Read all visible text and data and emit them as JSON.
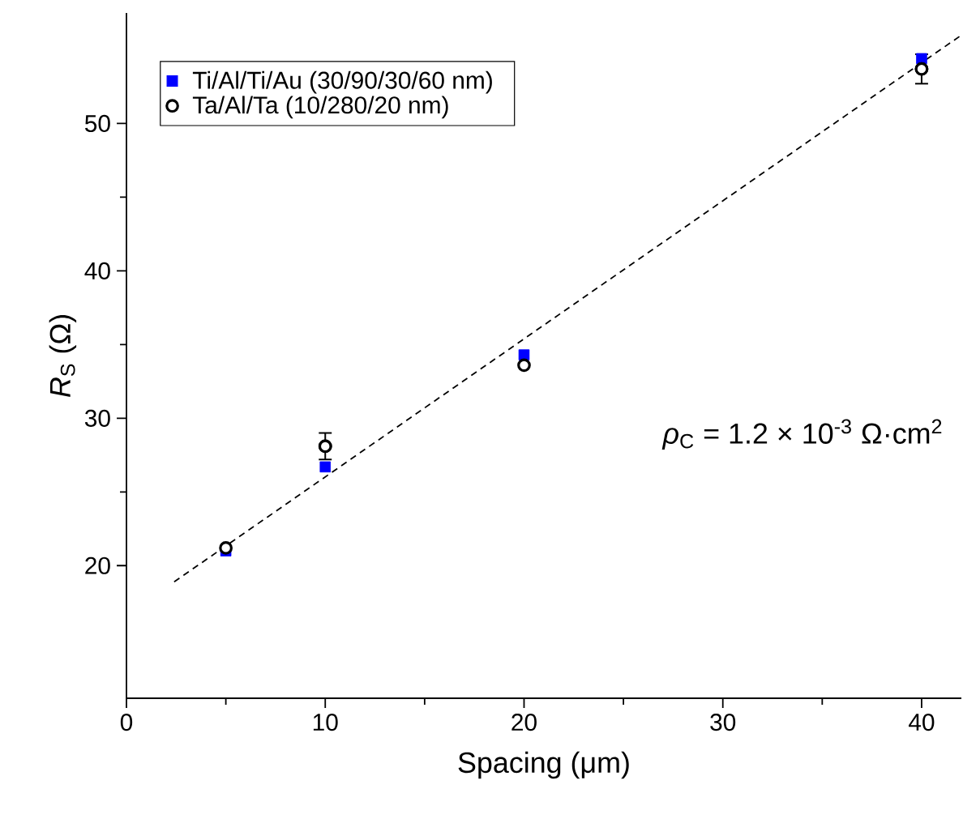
{
  "chart_data": {
    "type": "scatter",
    "xlabel": "Spacing (μm)",
    "ylabel": "*R*$_{S}$ (Ω)",
    "xlim": [
      0,
      42
    ],
    "ylim": [
      11,
      57.5
    ],
    "xticks": [
      0,
      10,
      20,
      30,
      40
    ],
    "yticks": [
      20,
      30,
      40,
      50
    ],
    "legend": "top left",
    "grid": false,
    "annotations": [
      "*ρ*$_{C}$ = 1.2 × 10$^{-3}$ Ω·cm$^{2}$"
    ],
    "series": [
      {
        "name": "Ti/Al/Ti/Au (30/90/30/60 nm)",
        "color": "#0000ff",
        "marker": "square",
        "x": [
          5,
          10,
          20,
          40
        ],
        "values": [
          21.0,
          26.7,
          34.3,
          54.4
        ]
      },
      {
        "name": "Ta/Al/Ta (10/280/20 nm)",
        "color": "#000000",
        "marker": "circle",
        "x": [
          5,
          10,
          20,
          40
        ],
        "values": [
          21.2,
          28.1,
          33.6,
          53.7
        ],
        "errors": [
          null,
          0.9,
          null,
          1.0
        ]
      },
      {
        "type": "line",
        "color": "#000000",
        "line_style": "dashed",
        "marker": "none",
        "x": [
          2.4,
          41.9
        ],
        "values": [
          18.9,
          55.9
        ]
      }
    ]
  }
}
